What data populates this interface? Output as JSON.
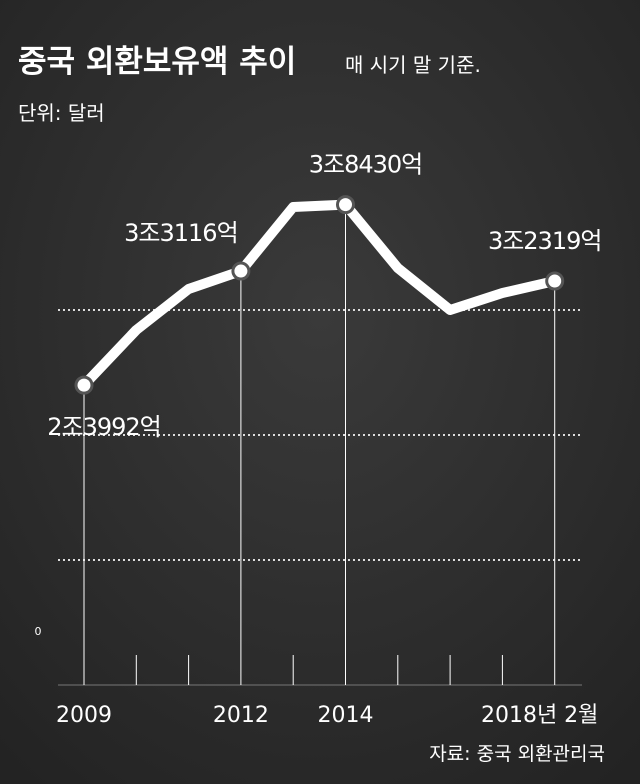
{
  "chart_data": {
    "type": "line",
    "title": "중국 외환보유액 추이",
    "subtitle": "매 시기 말 기준.",
    "unit": "단위: 달러",
    "source": "자료: 중국 외환관리국",
    "categories": [
      "2009",
      null,
      null,
      "2012",
      null,
      "2014",
      null,
      null,
      null,
      "2018년 2월"
    ],
    "values": [
      23992,
      28400,
      31680,
      33116,
      38240,
      38430,
      33360,
      30000,
      31360,
      32319
    ],
    "value_labels": [
      "2조3992억",
      null,
      null,
      "3조3116억",
      null,
      "3조8430억",
      null,
      null,
      null,
      "3조2319억"
    ],
    "color": "#ffffff",
    "ylim": [
      0,
      40000
    ],
    "yticks": [
      {
        "value": 0,
        "label": "0"
      },
      10000,
      20000,
      30000
    ],
    "grid": true
  }
}
